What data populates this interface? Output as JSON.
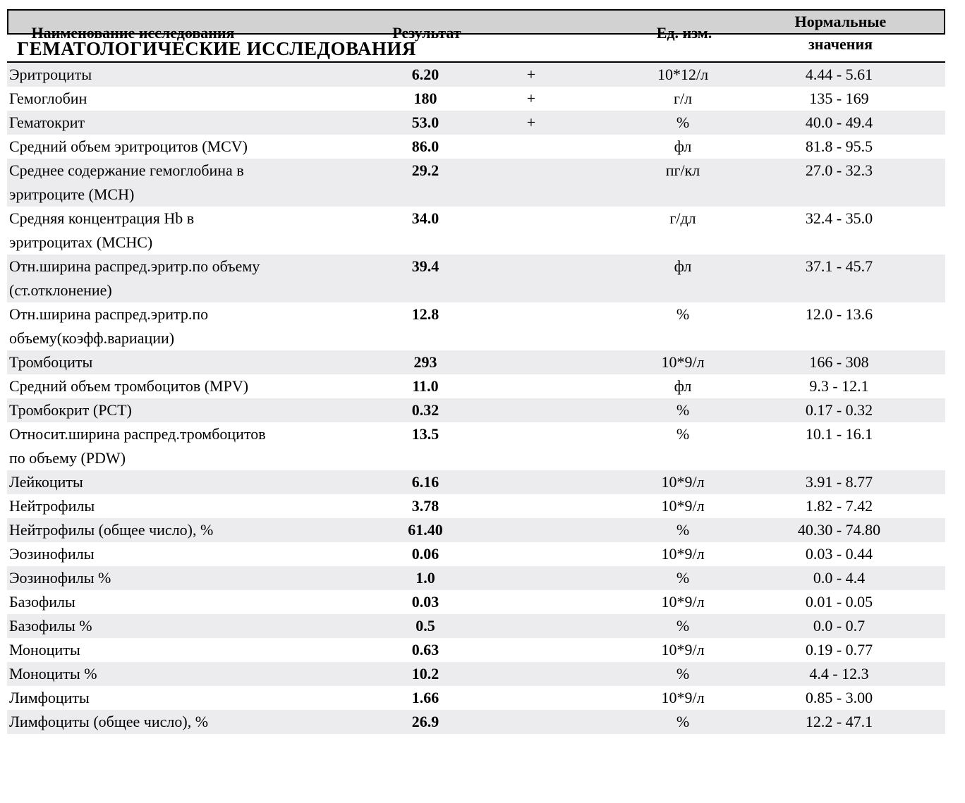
{
  "colors": {
    "header_bg": "#d2d2d2",
    "stripe_bg": "#ececee",
    "border": "#000000",
    "text": "#000000"
  },
  "table": {
    "headers": {
      "name": "Наименование исследования",
      "result": "Результат",
      "flag": "",
      "units": "Ед. изм.",
      "normal": "Нормальные значения"
    },
    "section": "ГЕМАТОЛОГИЧЕСКИЕ ИССЛЕДОВАНИЯ",
    "rows": [
      {
        "name": "Эритроциты",
        "result": "6.20",
        "flag": "+",
        "units": "10*12/л",
        "normal": "4.44 - 5.61"
      },
      {
        "name": "Гемоглобин",
        "result": "180",
        "flag": "+",
        "units": "г/л",
        "normal": "135 - 169"
      },
      {
        "name": "Гематокрит",
        "result": "53.0",
        "flag": "+",
        "units": "%",
        "normal": "40.0 - 49.4"
      },
      {
        "name": "Средний объем эритроцитов (MCV)",
        "result": "86.0",
        "flag": "",
        "units": "фл",
        "normal": "81.8 - 95.5"
      },
      {
        "name": "Среднее содержание гемоглобина в\nэритроците (MCH)",
        "result": "29.2",
        "flag": "",
        "units": "пг/кл",
        "normal": "27.0 - 32.3"
      },
      {
        "name": "Средняя концентрация Hb в\nэритроцитах (MCHC)",
        "result": "34.0",
        "flag": "",
        "units": "г/дл",
        "normal": "32.4 - 35.0"
      },
      {
        "name": "Отн.ширина распред.эритр.по объему\n(ст.отклонение)",
        "result": "39.4",
        "flag": "",
        "units": "фл",
        "normal": "37.1 - 45.7"
      },
      {
        "name": "Отн.ширина распред.эритр.по\nобъему(коэфф.вариации)",
        "result": "12.8",
        "flag": "",
        "units": "%",
        "normal": "12.0 - 13.6"
      },
      {
        "name": "Тромбоциты",
        "result": "293",
        "flag": "",
        "units": "10*9/л",
        "normal": "166 - 308"
      },
      {
        "name": "Средний объем тромбоцитов (MPV)",
        "result": "11.0",
        "flag": "",
        "units": "фл",
        "normal": "9.3 - 12.1"
      },
      {
        "name": "Тромбокрит (PCT)",
        "result": "0.32",
        "flag": "",
        "units": "%",
        "normal": "0.17 - 0.32"
      },
      {
        "name": "Относит.ширина распред.тромбоцитов\nпо объему (PDW)",
        "result": "13.5",
        "flag": "",
        "units": "%",
        "normal": "10.1 - 16.1"
      },
      {
        "name": "Лейкоциты",
        "result": "6.16",
        "flag": "",
        "units": "10*9/л",
        "normal": "3.91 - 8.77"
      },
      {
        "name": "Нейтрофилы",
        "result": "3.78",
        "flag": "",
        "units": "10*9/л",
        "normal": "1.82 - 7.42"
      },
      {
        "name": "Нейтрофилы (общее число), %",
        "result": "61.40",
        "flag": "",
        "units": "%",
        "normal": "40.30 - 74.80"
      },
      {
        "name": "Эозинофилы",
        "result": "0.06",
        "flag": "",
        "units": "10*9/л",
        "normal": "0.03 - 0.44"
      },
      {
        "name": "Эозинофилы %",
        "result": "1.0",
        "flag": "",
        "units": "%",
        "normal": "0.0 - 4.4"
      },
      {
        "name": "Базофилы",
        "result": "0.03",
        "flag": "",
        "units": "10*9/л",
        "normal": "0.01 - 0.05"
      },
      {
        "name": "Базофилы %",
        "result": "0.5",
        "flag": "",
        "units": "%",
        "normal": "0.0 - 0.7"
      },
      {
        "name": "Моноциты",
        "result": "0.63",
        "flag": "",
        "units": "10*9/л",
        "normal": "0.19 - 0.77"
      },
      {
        "name": "Моноциты %",
        "result": "10.2",
        "flag": "",
        "units": "%",
        "normal": "4.4 - 12.3"
      },
      {
        "name": "Лимфоциты",
        "result": "1.66",
        "flag": "",
        "units": "10*9/л",
        "normal": "0.85 - 3.00"
      },
      {
        "name": "Лимфоциты (общее число), %",
        "result": "26.9",
        "flag": "",
        "units": "%",
        "normal": "12.2 - 47.1"
      }
    ]
  }
}
